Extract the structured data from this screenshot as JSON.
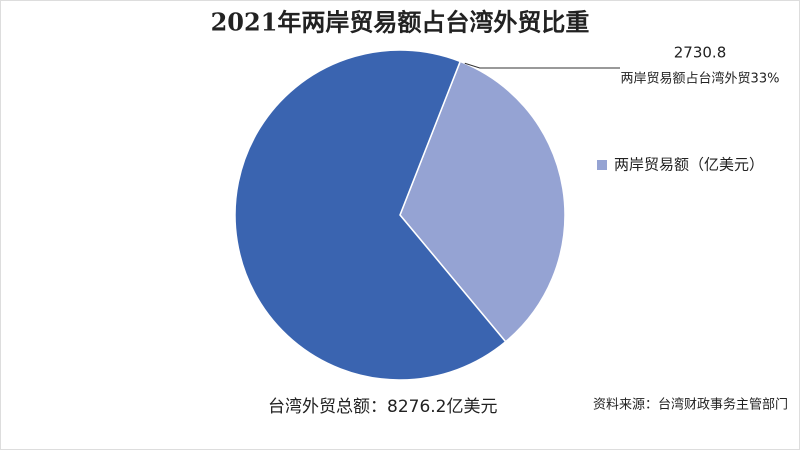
{
  "chart_data": {
    "type": "pie",
    "title": "2021年两岸贸易额占台湾外贸比重",
    "categories": [
      "两岸贸易额（亿美元）",
      null
    ],
    "values": [
      2730.8,
      5545.4
    ],
    "colors": [
      "#95a3d3",
      "#3a64b0"
    ],
    "annotation": "两岸贸易额占台湾外贸33%",
    "footnote_left": "台湾外贸总额：8276.2亿美元",
    "source": "资料来源：台湾财政事务主管部门",
    "legend": "right"
  }
}
